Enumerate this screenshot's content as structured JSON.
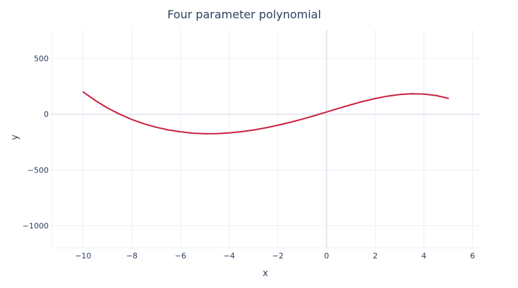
{
  "chart_data": {
    "type": "line",
    "title": "Four parameter polynomial",
    "xlabel": "x",
    "ylabel": "y",
    "xlim": [
      -11.3,
      6.3
    ],
    "ylim": [
      -1200,
      760
    ],
    "x_ticks": [
      -10,
      -8,
      -6,
      -4,
      -2,
      0,
      2,
      4,
      6
    ],
    "x_tick_labels": [
      "−10",
      "−8",
      "−6",
      "−4",
      "−2",
      "0",
      "2",
      "4",
      "6"
    ],
    "y_ticks": [
      -1000,
      -500,
      0,
      500
    ],
    "y_tick_labels": [
      "−1000",
      "−500",
      "0",
      "500"
    ],
    "grid": true,
    "series": [
      {
        "color": "#c8203e",
        "x": [
          -10,
          -9.5,
          -9,
          -8.5,
          -8,
          -7.5,
          -7,
          -6.5,
          -6,
          -5.5,
          -5,
          -4.5,
          -4,
          -3.5,
          -3,
          -2.5,
          -2,
          -1.5,
          -1,
          -0.5,
          0,
          0.5,
          1,
          1.5,
          2,
          2.5,
          3,
          3.5,
          4,
          4.5,
          5
        ],
        "y": [
          200,
          123,
          56,
          0,
          -47,
          -86,
          -117,
          -141,
          -158,
          -170,
          -175,
          -174,
          -168,
          -157,
          -142,
          -122,
          -99,
          -73,
          -44,
          -13,
          20,
          53,
          85,
          115,
          141,
          162,
          177,
          184,
          181,
          168,
          143
        ]
      }
    ]
  }
}
